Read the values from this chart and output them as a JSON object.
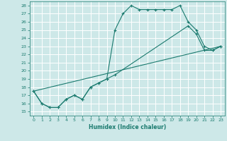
{
  "xlabel": "Humidex (Indice chaleur)",
  "bg_color": "#cde8e8",
  "line_color": "#1a7a6e",
  "grid_color": "#b8d8d8",
  "xlim": [
    -0.5,
    23.5
  ],
  "ylim": [
    14.5,
    28.5
  ],
  "yticks": [
    15,
    16,
    17,
    18,
    19,
    20,
    21,
    22,
    23,
    24,
    25,
    26,
    27,
    28
  ],
  "xticks": [
    0,
    1,
    2,
    3,
    4,
    5,
    6,
    7,
    8,
    9,
    10,
    11,
    12,
    13,
    14,
    15,
    16,
    17,
    18,
    19,
    20,
    21,
    22,
    23
  ],
  "line1_x": [
    0,
    1,
    2,
    3,
    4,
    5,
    6,
    7,
    8,
    9,
    10,
    11,
    12,
    13,
    14,
    15,
    16,
    17,
    18,
    19,
    20,
    21,
    22,
    23
  ],
  "line1_y": [
    17.5,
    16.0,
    15.5,
    15.5,
    16.5,
    17.0,
    16.5,
    18.0,
    18.5,
    19.0,
    25.0,
    27.0,
    28.0,
    27.5,
    27.5,
    27.5,
    27.5,
    27.5,
    28.0,
    26.0,
    25.0,
    23.0,
    22.5,
    23.0
  ],
  "line2_x": [
    0,
    1,
    2,
    3,
    4,
    5,
    6,
    7,
    8,
    9,
    10,
    19,
    20,
    21,
    22,
    23
  ],
  "line2_y": [
    17.5,
    16.0,
    15.5,
    15.5,
    16.5,
    17.0,
    16.5,
    18.0,
    18.5,
    19.0,
    19.5,
    25.5,
    24.5,
    22.5,
    22.5,
    23.0
  ],
  "line3_x": [
    0,
    23
  ],
  "line3_y": [
    17.5,
    23.0
  ]
}
